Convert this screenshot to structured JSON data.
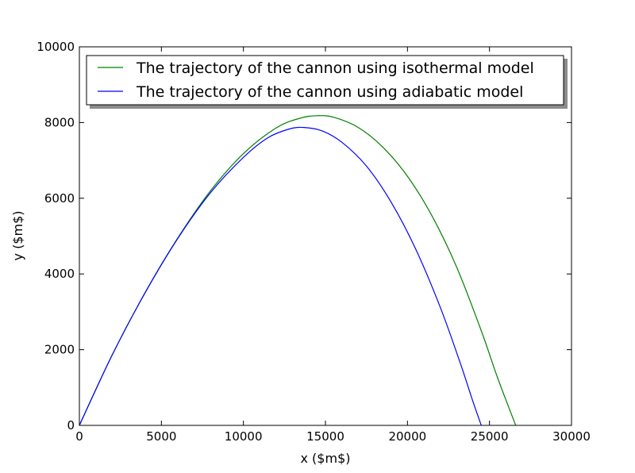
{
  "chart_data": {
    "type": "line",
    "title": "",
    "xlabel": "x ($m$)",
    "ylabel": "y ($m$)",
    "xlim": [
      0,
      30000
    ],
    "ylim": [
      0,
      10000
    ],
    "xticks": [
      0,
      5000,
      10000,
      15000,
      20000,
      25000,
      30000
    ],
    "yticks": [
      0,
      2000,
      4000,
      6000,
      8000,
      10000
    ],
    "grid": false,
    "legend_position": "top",
    "series": [
      {
        "name": "The trajectory of the cannon using isothermal model",
        "color": "#008000",
        "x": [
          0,
          2000,
          4000,
          6000,
          8000,
          10000,
          12000,
          13500,
          14500,
          15500,
          17000,
          18500,
          20000,
          21500,
          23000,
          24500,
          25500,
          26600
        ],
        "y": [
          0,
          1860,
          3500,
          4950,
          6200,
          7180,
          7860,
          8120,
          8180,
          8140,
          7870,
          7350,
          6580,
          5530,
          4180,
          2500,
          1250,
          0
        ]
      },
      {
        "name": "The trajectory of the cannon using adiabatic model",
        "color": "#0000ff",
        "x": [
          0,
          2000,
          4000,
          6000,
          8000,
          10000,
          11500,
          12800,
          13700,
          14800,
          16000,
          17500,
          19000,
          20500,
          22000,
          23200,
          24000,
          24500
        ],
        "y": [
          0,
          1860,
          3500,
          4940,
          6150,
          7080,
          7600,
          7830,
          7870,
          7780,
          7480,
          6850,
          5900,
          4660,
          3120,
          1670,
          620,
          0
        ]
      }
    ]
  }
}
